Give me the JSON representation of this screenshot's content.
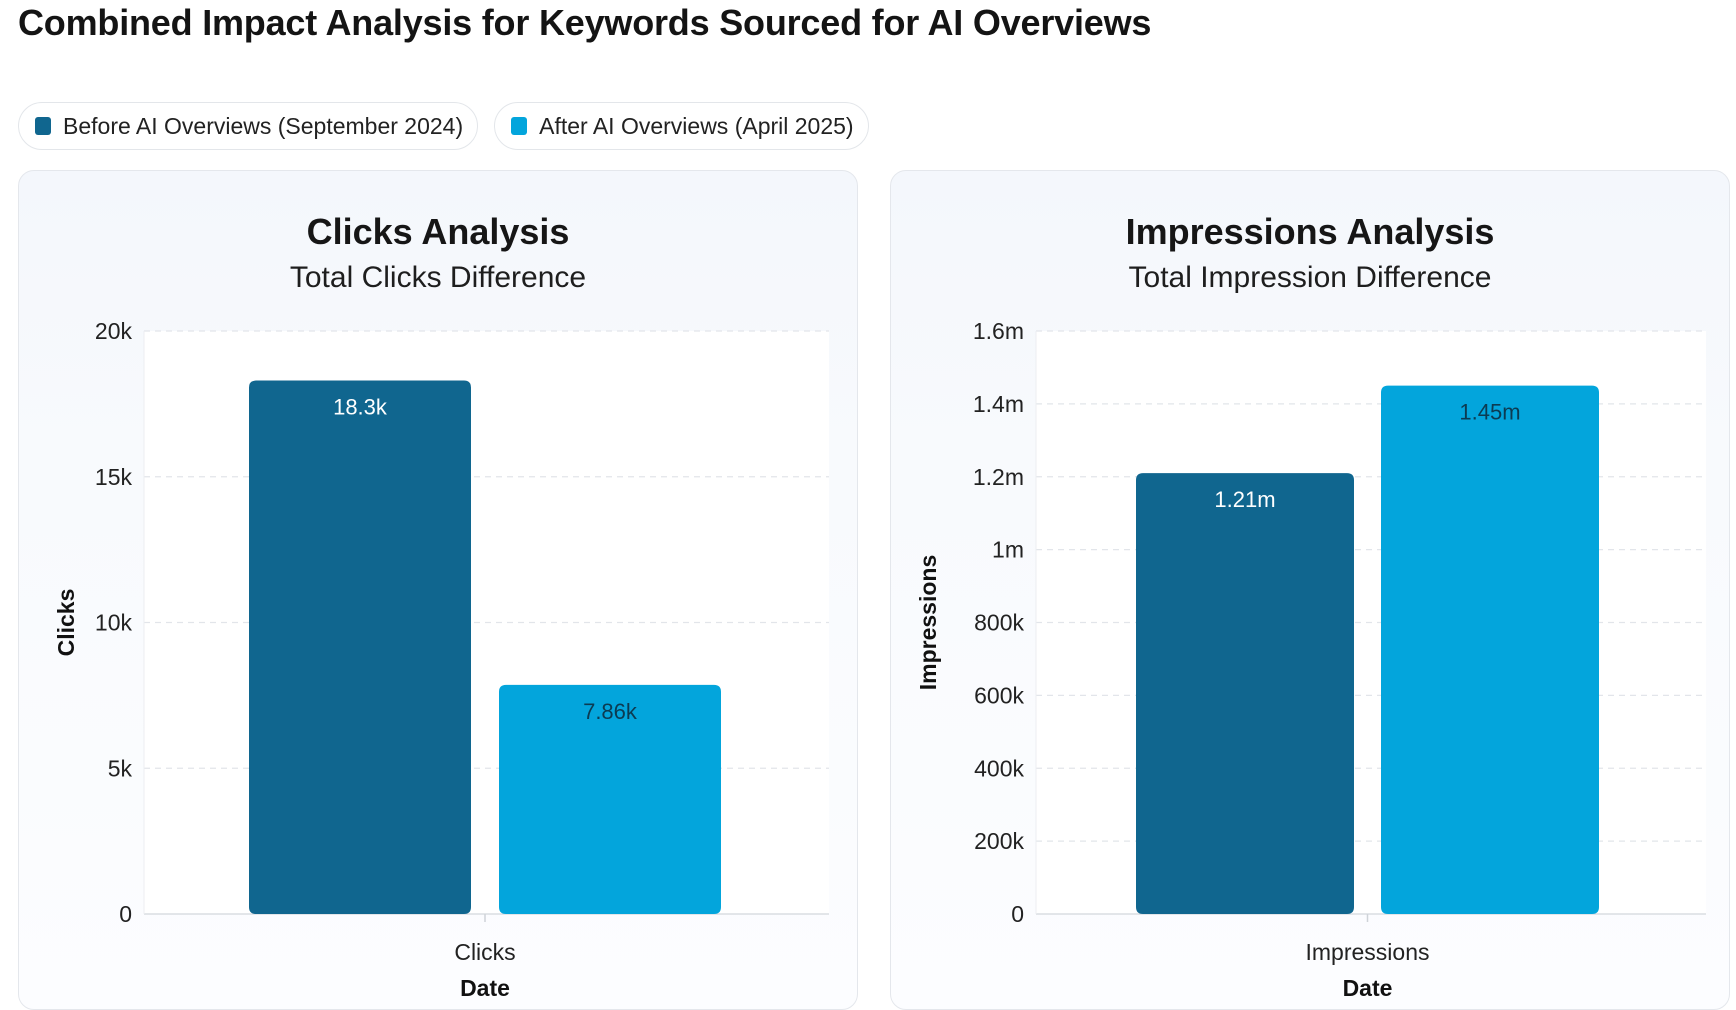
{
  "page": {
    "title": "Combined Impact Analysis for Keywords Sourced for AI Overviews"
  },
  "legend": [
    {
      "label": "Before AI Overviews (September 2024)",
      "color": "#10668f"
    },
    {
      "label": "After AI Overviews (April 2025)",
      "color": "#03a5dc"
    }
  ],
  "chart_data": [
    {
      "type": "bar",
      "title": "Clicks Analysis",
      "subtitle": "Total Clicks Difference",
      "categories": [
        "Clicks"
      ],
      "series": [
        {
          "name": "Before AI Overviews (September 2024)",
          "values": [
            18300
          ],
          "color": "#10668f"
        },
        {
          "name": "After AI Overviews (April 2025)",
          "values": [
            7860
          ],
          "color": "#03a5dc"
        }
      ],
      "data_labels": [
        "18.3k",
        "7.86k"
      ],
      "xlabel": "Date",
      "ylabel": "Clicks",
      "ylim": [
        0,
        20000
      ],
      "yticks": [
        0,
        5000,
        10000,
        15000,
        20000
      ],
      "ytick_labels": [
        "0",
        "5k",
        "10k",
        "15k",
        "20k"
      ],
      "grid": true
    },
    {
      "type": "bar",
      "title": "Impressions Analysis",
      "subtitle": "Total Impression Difference",
      "categories": [
        "Impressions"
      ],
      "series": [
        {
          "name": "Before AI Overviews (September 2024)",
          "values": [
            1210000
          ],
          "color": "#10668f"
        },
        {
          "name": "After AI Overviews (April 2025)",
          "values": [
            1450000
          ],
          "color": "#03a5dc"
        }
      ],
      "data_labels": [
        "1.21m",
        "1.45m"
      ],
      "xlabel": "Date",
      "ylabel": "Impressions",
      "ylim": [
        0,
        1600000
      ],
      "yticks": [
        0,
        200000,
        400000,
        600000,
        800000,
        1000000,
        1200000,
        1400000,
        1600000
      ],
      "ytick_labels": [
        "0",
        "200k",
        "400k",
        "600k",
        "800k",
        "1m",
        "1.2m",
        "1.4m",
        "1.6m"
      ],
      "grid": true
    }
  ]
}
